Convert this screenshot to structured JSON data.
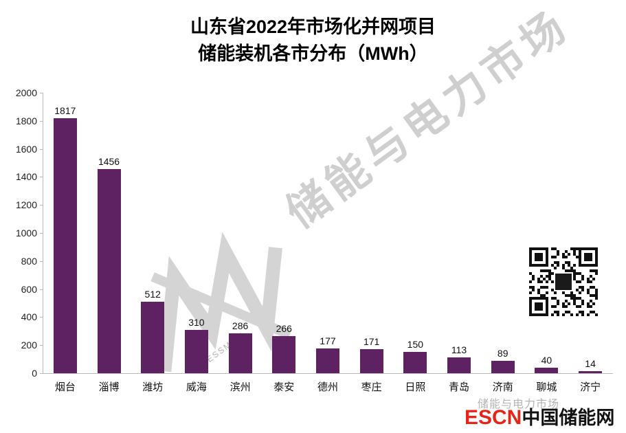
{
  "title": {
    "line1": "山东省2022年市场化并网项目",
    "line2": "储能装机各市分布（MWh）"
  },
  "chart_data": {
    "type": "bar",
    "categories": [
      "烟台",
      "淄博",
      "潍坊",
      "威海",
      "滨州",
      "泰安",
      "德州",
      "枣庄",
      "日照",
      "青岛",
      "济南",
      "聊城",
      "济宁"
    ],
    "values": [
      1817,
      1456,
      512,
      310,
      286,
      266,
      177,
      171,
      150,
      113,
      89,
      40,
      14
    ],
    "title": "山东省2022年市场化并网项目储能装机各市分布（MWh）",
    "xlabel": "",
    "ylabel": "",
    "ylim": [
      0,
      2000
    ],
    "ytick_step": 200,
    "grid": false,
    "legend": false,
    "bar_color": "#5e2162",
    "value_labels": true
  },
  "watermark": {
    "diagonal_text": "储能与电力市场",
    "logo_caption": "ESSMGM",
    "footer_text": "储能与电力市场"
  },
  "footer": {
    "brand_red": "ESCN",
    "brand_black": "中国储能网"
  },
  "qr": {
    "label": "qr-code"
  }
}
